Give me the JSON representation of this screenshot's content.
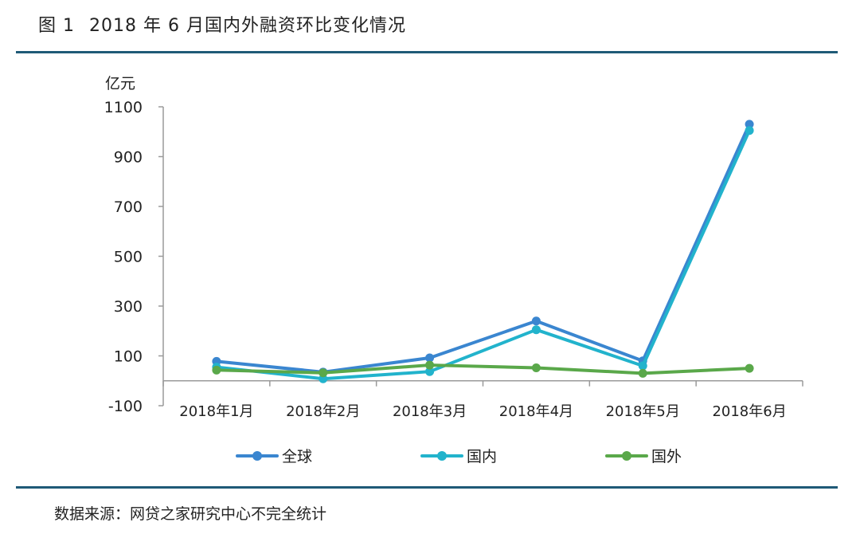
{
  "header": {
    "figure_label": "图 1",
    "title": "2018 年 6 月国内外融资环比变化情况"
  },
  "footer": {
    "source": "数据来源：网贷之家研究中心不完全统计"
  },
  "chart_data": {
    "type": "line",
    "title": "2018 年 6 月国内外融资环比变化情况",
    "ylabel": "亿元",
    "xlabel": "",
    "ylim": [
      -100,
      1100
    ],
    "yticks": [
      -100,
      100,
      300,
      500,
      700,
      900,
      1100
    ],
    "categories": [
      "2018年1月",
      "2018年2月",
      "2018年3月",
      "2018年4月",
      "2018年5月",
      "2018年6月"
    ],
    "legend_position": "bottom",
    "grid": false,
    "series": [
      {
        "name": "全球",
        "color": "#3a86d0",
        "values": [
          78,
          35,
          92,
          240,
          80,
          1030
        ]
      },
      {
        "name": "国内",
        "color": "#22b3cc",
        "values": [
          55,
          8,
          37,
          205,
          60,
          1005
        ]
      },
      {
        "name": "国外",
        "color": "#5aa84a",
        "values": [
          43,
          32,
          63,
          52,
          30,
          50
        ]
      }
    ]
  }
}
